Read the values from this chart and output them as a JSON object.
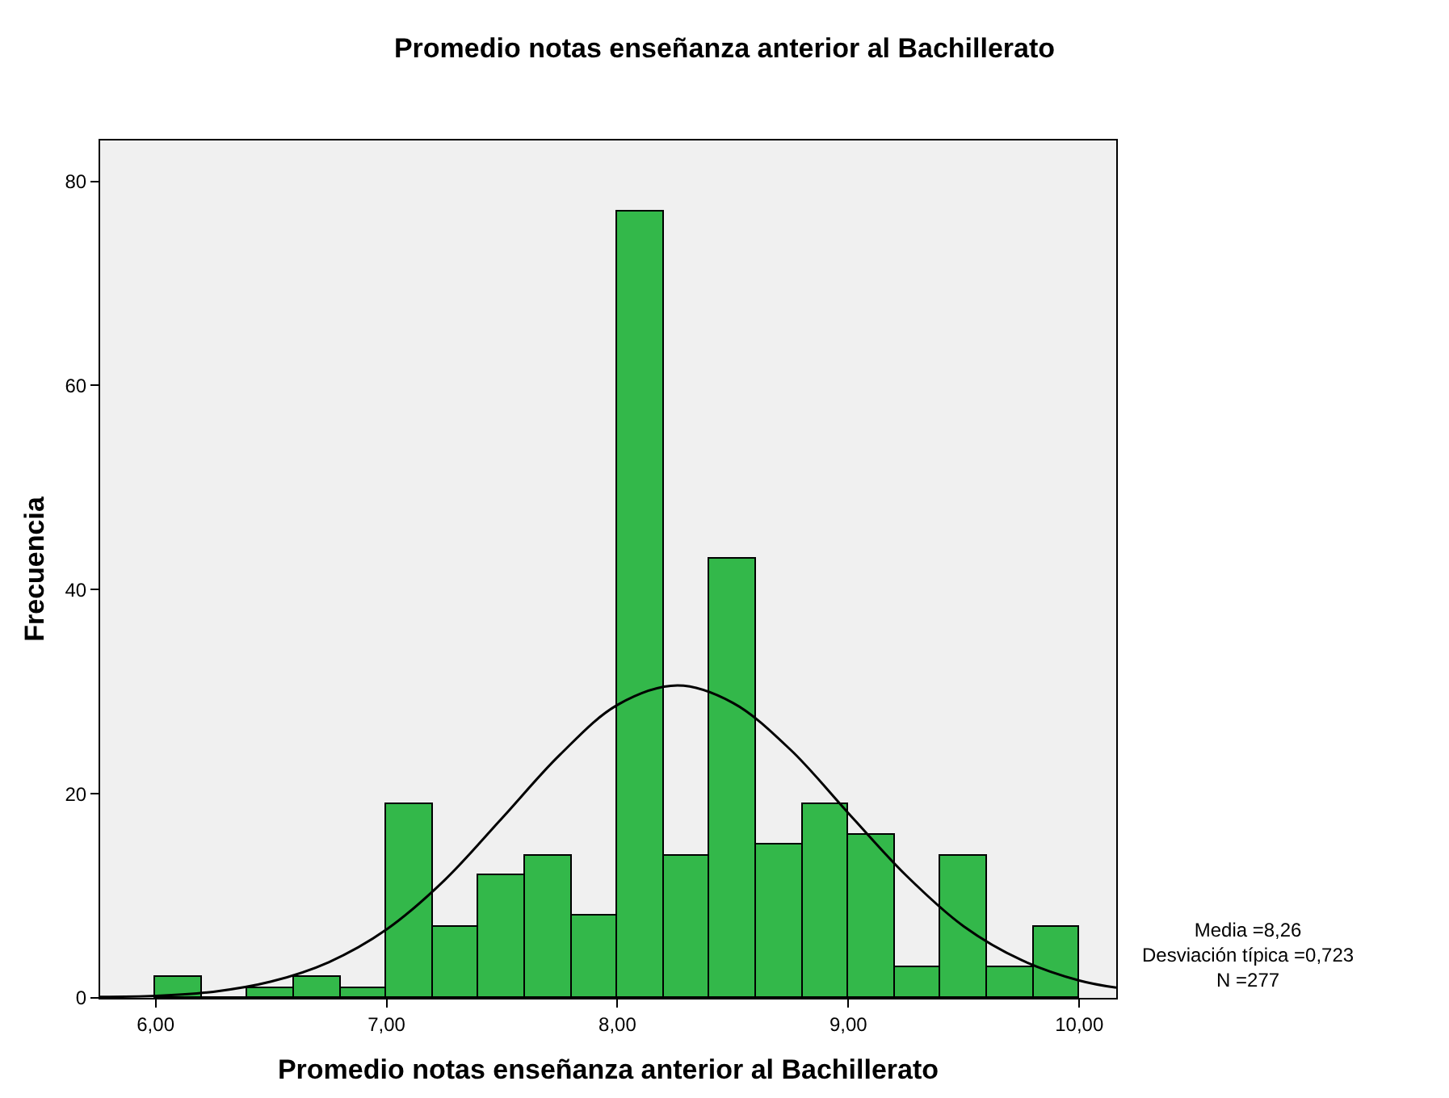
{
  "chart_data": {
    "type": "histogram",
    "title": "Promedio notas enseñanza anterior al Bachillerato",
    "xlabel": "Promedio notas enseñanza anterior al Bachillerato",
    "ylabel": "Frecuencia",
    "bins": [
      6.0,
      6.2,
      6.4,
      6.6,
      6.8,
      7.0,
      7.2,
      7.4,
      7.6,
      7.8,
      8.0,
      8.2,
      8.4,
      8.6,
      8.8,
      9.0,
      9.2,
      9.4,
      9.6,
      9.8,
      10.0
    ],
    "values": [
      2,
      0,
      1,
      2,
      1,
      19,
      7,
      12,
      14,
      8,
      77,
      14,
      43,
      15,
      19,
      16,
      3,
      14,
      3,
      7
    ],
    "color": "#33b84a",
    "series": [
      {
        "type": "line",
        "color": "#000000",
        "x": [
          5.76,
          6.0,
          6.25,
          6.5,
          6.75,
          7.0,
          7.25,
          7.5,
          7.75,
          8.0,
          8.26,
          8.5,
          8.75,
          9.0,
          9.25,
          9.5,
          9.75,
          10.0,
          10.16
        ],
        "values": [
          0.1,
          0.2,
          0.6,
          1.6,
          3.5,
          6.7,
          11.5,
          17.6,
          23.8,
          28.7,
          30.6,
          28.9,
          24.3,
          18.1,
          12.0,
          7.0,
          3.7,
          1.7,
          1.0
        ]
      }
    ],
    "xlim": [
      5.76,
      10.16
    ],
    "xticks": [
      {
        "value": 6,
        "label": "6,00"
      },
      {
        "value": 7,
        "label": "7,00"
      },
      {
        "value": 8,
        "label": "8,00"
      },
      {
        "value": 9,
        "label": "9,00"
      },
      {
        "value": 10,
        "label": "10,00"
      }
    ],
    "ylim": [
      0,
      84
    ],
    "yticks": [
      0,
      20,
      40,
      60,
      80
    ],
    "grid": false,
    "annotations": [
      "Media =8,26",
      "Desviación típica =0,723",
      "N =277"
    ]
  }
}
